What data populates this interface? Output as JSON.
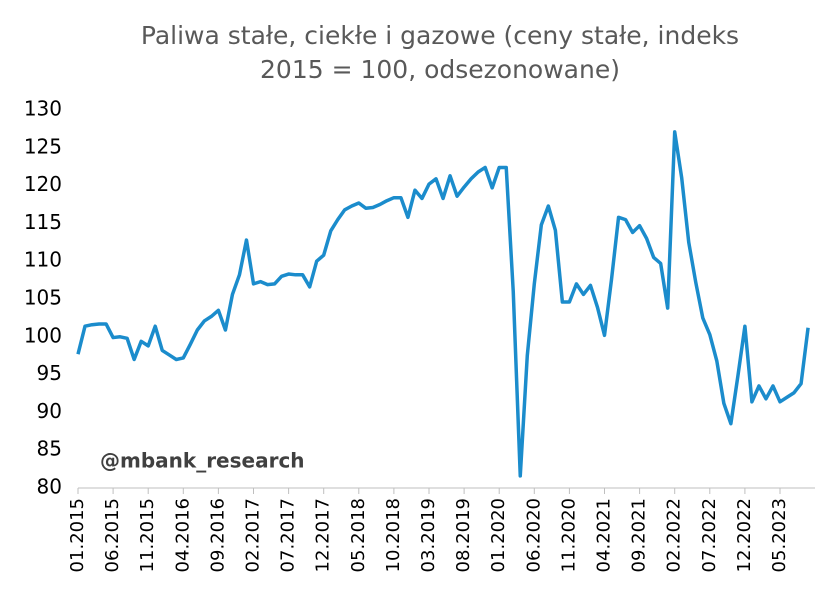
{
  "chart_data": {
    "type": "line",
    "title": [
      "Paliwa stałe, ciekłe i gazowe (ceny stałe, indeks",
      "2015 = 100, odsezonowane)"
    ],
    "annotation": "@mbank_research",
    "categories": [
      "01.2015",
      null,
      null,
      null,
      null,
      "06.2015",
      null,
      null,
      null,
      null,
      "11.2015",
      null,
      null,
      null,
      null,
      "04.2016",
      null,
      null,
      null,
      null,
      "09.2016",
      null,
      null,
      null,
      null,
      "02.2017",
      null,
      null,
      null,
      null,
      "07.2017",
      null,
      null,
      null,
      null,
      "12.2017",
      null,
      null,
      null,
      null,
      "05.2018",
      null,
      null,
      null,
      null,
      "10.2018",
      null,
      null,
      null,
      null,
      "03.2019",
      null,
      null,
      null,
      null,
      "08.2019",
      null,
      null,
      null,
      null,
      "01.2020",
      null,
      null,
      null,
      null,
      "06.2020",
      null,
      null,
      null,
      null,
      "11.2020",
      null,
      null,
      null,
      null,
      "04.2021",
      null,
      null,
      null,
      null,
      "09.2021",
      null,
      null,
      null,
      null,
      "02.2022",
      null,
      null,
      null,
      null,
      "07.2022",
      null,
      null,
      null,
      null,
      "12.2022",
      null,
      null,
      null,
      null,
      "05.2023",
      null,
      null,
      null,
      null
    ],
    "series": [
      {
        "name": "Paliwa stałe, ciekłe i gazowe",
        "color": "#1b8ccc",
        "values": [
          97.7,
          101.4,
          101.6,
          101.7,
          101.7,
          99.9,
          100.0,
          99.8,
          97.0,
          99.4,
          98.8,
          101.4,
          98.2,
          97.6,
          97.0,
          97.2,
          99.0,
          100.9,
          102.1,
          102.7,
          103.5,
          100.9,
          105.6,
          108.2,
          112.8,
          107.0,
          107.3,
          106.9,
          107.0,
          108.0,
          108.3,
          108.2,
          108.2,
          106.6,
          110.0,
          110.8,
          114.0,
          115.5,
          116.8,
          117.3,
          117.7,
          117.0,
          117.1,
          117.5,
          118.0,
          118.4,
          118.4,
          115.8,
          119.4,
          118.3,
          120.2,
          120.9,
          118.3,
          121.3,
          118.6,
          119.8,
          120.9,
          121.8,
          122.4,
          119.7,
          122.4,
          122.4,
          106.0,
          81.6,
          97.5,
          107.0,
          114.8,
          117.3,
          114.1,
          104.6,
          104.6,
          107.0,
          105.6,
          106.8,
          103.9,
          100.2,
          107.6,
          115.8,
          115.5,
          113.8,
          114.7,
          113.0,
          110.5,
          109.7,
          103.8,
          127.1,
          121.0,
          112.5,
          107.2,
          102.5,
          100.3,
          96.8,
          91.2,
          88.5,
          94.8,
          101.4,
          91.4,
          93.5,
          91.8,
          93.5,
          91.4,
          92.0,
          92.6,
          93.8,
          101.2
        ]
      }
    ],
    "ylim": [
      80,
      130
    ],
    "yticks": [
      80,
      85,
      90,
      95,
      100,
      105,
      110,
      115,
      120,
      125,
      130
    ],
    "grid": false
  }
}
